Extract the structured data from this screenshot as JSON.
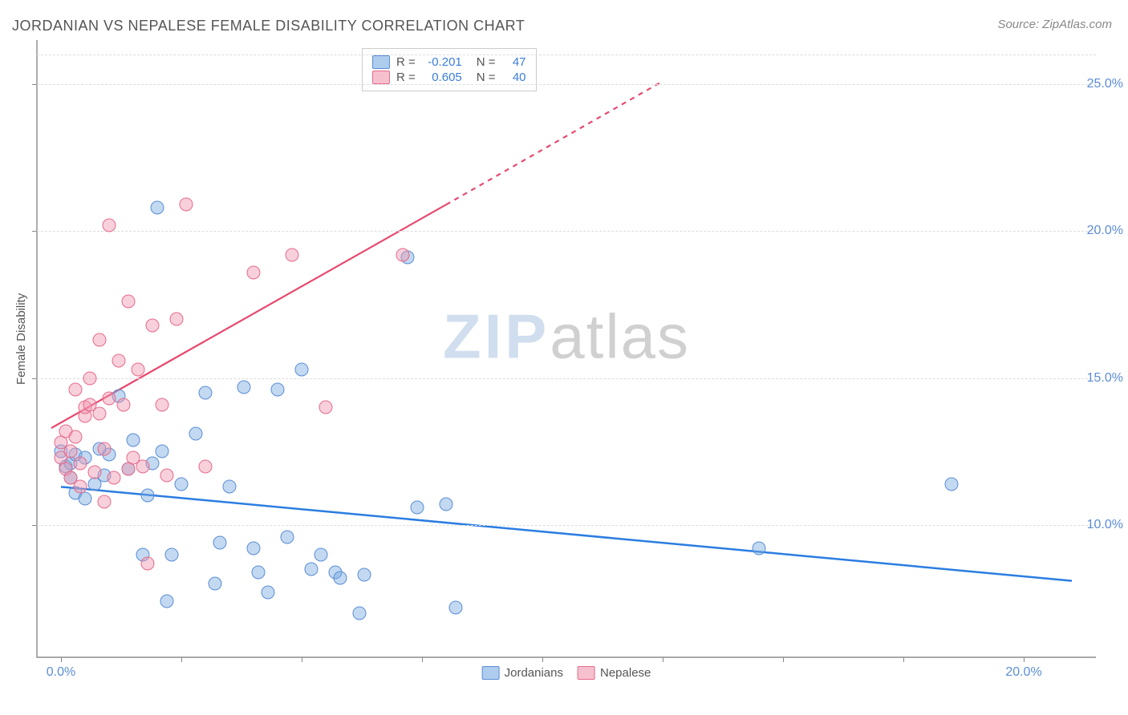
{
  "title": "JORDANIAN VS NEPALESE FEMALE DISABILITY CORRELATION CHART",
  "source": "Source: ZipAtlas.com",
  "ylabel": "Female Disability",
  "watermark": {
    "part1": "ZIP",
    "part2": "atlas"
  },
  "chart": {
    "type": "scatter",
    "background_color": "#ffffff",
    "grid_color": "#dddddd",
    "axis_color": "#777777",
    "xlim": [
      -0.5,
      21.5
    ],
    "ylim": [
      5.5,
      26.5
    ],
    "xtick_positions": [
      0.0,
      2.5,
      5.0,
      7.5,
      10.0,
      12.5,
      15.0,
      17.5,
      20.0
    ],
    "xtick_labels": {
      "0.0": "0.0%",
      "20.0": "20.0%"
    },
    "ytick_positions": [
      10.0,
      15.0,
      20.0,
      25.0
    ],
    "ytick_labels": {
      "10.0": "10.0%",
      "15.0": "15.0%",
      "20.0": "20.0%",
      "25.0": "25.0%"
    },
    "marker_radius": 7.5,
    "label_fontsize": 16,
    "title_fontsize": 18,
    "series": [
      {
        "name": "Jordanians",
        "color_fill": "rgba(120,170,225,0.45)",
        "color_stroke": "#5b8dd6",
        "R": "-0.201",
        "N": "47",
        "trend": {
          "x1": 0.0,
          "y1": 11.3,
          "x2": 21.0,
          "y2": 8.1,
          "color": "#2b7de1",
          "width": 2.5,
          "dash": "none"
        },
        "points": [
          [
            0.0,
            12.5
          ],
          [
            0.1,
            12.0
          ],
          [
            0.2,
            11.6
          ],
          [
            0.2,
            12.1
          ],
          [
            0.3,
            12.4
          ],
          [
            0.3,
            11.1
          ],
          [
            0.5,
            10.9
          ],
          [
            0.5,
            12.3
          ],
          [
            0.7,
            11.4
          ],
          [
            0.8,
            12.6
          ],
          [
            0.9,
            11.7
          ],
          [
            1.0,
            12.4
          ],
          [
            1.2,
            14.4
          ],
          [
            1.4,
            11.9
          ],
          [
            1.5,
            12.9
          ],
          [
            1.7,
            9.0
          ],
          [
            1.8,
            11.0
          ],
          [
            1.9,
            12.1
          ],
          [
            2.0,
            20.8
          ],
          [
            2.1,
            12.5
          ],
          [
            2.2,
            7.4
          ],
          [
            2.3,
            9.0
          ],
          [
            2.5,
            11.4
          ],
          [
            2.8,
            13.1
          ],
          [
            3.0,
            14.5
          ],
          [
            3.2,
            8.0
          ],
          [
            3.3,
            9.4
          ],
          [
            3.5,
            11.3
          ],
          [
            3.8,
            14.7
          ],
          [
            4.0,
            9.2
          ],
          [
            4.1,
            8.4
          ],
          [
            4.3,
            7.7
          ],
          [
            4.5,
            14.6
          ],
          [
            4.7,
            9.6
          ],
          [
            5.0,
            15.3
          ],
          [
            5.2,
            8.5
          ],
          [
            5.4,
            9.0
          ],
          [
            5.7,
            8.4
          ],
          [
            5.8,
            8.2
          ],
          [
            6.2,
            7.0
          ],
          [
            6.3,
            8.3
          ],
          [
            7.2,
            19.1
          ],
          [
            7.4,
            10.6
          ],
          [
            8.0,
            10.7
          ],
          [
            8.2,
            7.2
          ],
          [
            14.5,
            9.2
          ],
          [
            18.5,
            11.4
          ]
        ]
      },
      {
        "name": "Nepalese",
        "color_fill": "rgba(240,150,175,0.45)",
        "color_stroke": "#e66a8a",
        "R": "0.605",
        "N": "40",
        "trend": {
          "x1": -0.2,
          "y1": 13.3,
          "x2": 8.0,
          "y2": 20.9,
          "color": "#e7496f",
          "width": 2.2,
          "dash": "none",
          "extend": {
            "x2": 12.5,
            "y2": 25.1,
            "dash": "6,6"
          }
        },
        "points": [
          [
            0.0,
            12.3
          ],
          [
            0.0,
            12.8
          ],
          [
            0.1,
            11.9
          ],
          [
            0.1,
            13.2
          ],
          [
            0.2,
            11.6
          ],
          [
            0.2,
            12.5
          ],
          [
            0.3,
            13.0
          ],
          [
            0.3,
            14.6
          ],
          [
            0.4,
            11.3
          ],
          [
            0.4,
            12.1
          ],
          [
            0.5,
            13.7
          ],
          [
            0.5,
            14.0
          ],
          [
            0.6,
            14.1
          ],
          [
            0.6,
            15.0
          ],
          [
            0.7,
            11.8
          ],
          [
            0.8,
            16.3
          ],
          [
            0.8,
            13.8
          ],
          [
            0.9,
            10.8
          ],
          [
            0.9,
            12.6
          ],
          [
            1.0,
            20.2
          ],
          [
            1.0,
            14.3
          ],
          [
            1.1,
            11.6
          ],
          [
            1.2,
            15.6
          ],
          [
            1.3,
            14.1
          ],
          [
            1.4,
            17.6
          ],
          [
            1.4,
            11.9
          ],
          [
            1.5,
            12.3
          ],
          [
            1.6,
            15.3
          ],
          [
            1.7,
            12.0
          ],
          [
            1.8,
            8.7
          ],
          [
            1.9,
            16.8
          ],
          [
            2.1,
            14.1
          ],
          [
            2.2,
            11.7
          ],
          [
            2.4,
            17.0
          ],
          [
            2.6,
            20.9
          ],
          [
            3.0,
            12.0
          ],
          [
            4.0,
            18.6
          ],
          [
            4.8,
            19.2
          ],
          [
            5.5,
            14.0
          ],
          [
            7.1,
            19.2
          ]
        ]
      }
    ]
  },
  "top_legend": {
    "rows": [
      {
        "swatch": "blue",
        "R_label": "R =",
        "R": "-0.201",
        "N_label": "N =",
        "N": "47"
      },
      {
        "swatch": "pink",
        "R_label": "R =",
        "R": "0.605",
        "N_label": "N =",
        "N": "40"
      }
    ]
  },
  "bottom_legend": {
    "items": [
      {
        "swatch": "blue",
        "label": "Jordanians"
      },
      {
        "swatch": "pink",
        "label": "Nepalese"
      }
    ]
  }
}
